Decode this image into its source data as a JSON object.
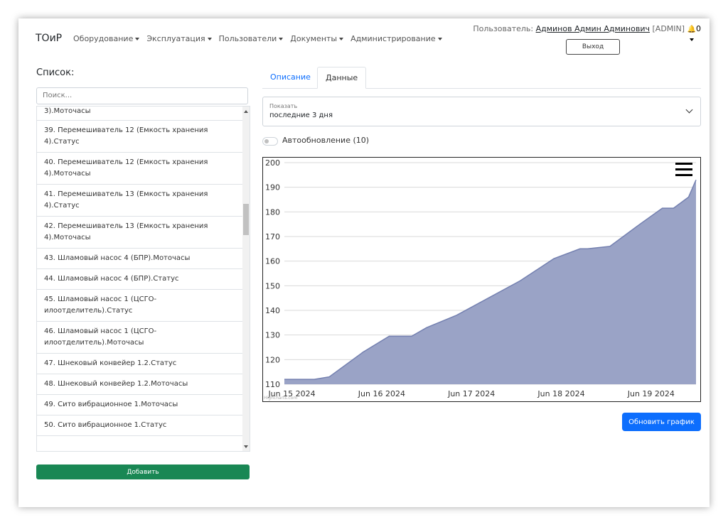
{
  "brand": "ТОиР",
  "nav": [
    "Оборудование",
    "Эксплуатация",
    "Пользователи",
    "Документы",
    "Администрирование"
  ],
  "user": {
    "prefix": "Пользователь:",
    "name": "Админов Админ Админович",
    "role": "[ADMIN]",
    "notifications": "0"
  },
  "logout_label": "Выход",
  "list": {
    "title": "Список:",
    "search_placeholder": "Поиск...",
    "items": [
      "3).Моточасы",
      "39. Перемешиватель 12 (Емкость хранения 4).Статус",
      "40. Перемешиватель 12 (Емкость хранения 4).Моточасы",
      "41. Перемешиватель 13 (Емкость хранения 4).Статус",
      "42. Перемешиватель 13 (Емкость хранения 4).Моточасы",
      "43. Шламовый насос 4 (БПР).Моточасы",
      "44. Шламовый насос 4 (БПР).Статус",
      "45. Шламовый насос 1 (ЦСГО-илоотделитель).Статус",
      "46. Шламовый насос 1 (ЦСГО-илоотделитель).Моточасы",
      "47. Шнековый конвейер 1.2.Статус",
      "48. Шнековый конвейер 1.2.Моточасы",
      "49. Сито вибрационное 1.Моточасы",
      "50. Сито вибрационное 1.Статус"
    ],
    "add_label": "Добавить"
  },
  "tabs": [
    "Описание",
    "Данные"
  ],
  "show": {
    "label": "Показать",
    "value": "последние 3 дня"
  },
  "autorefresh_label": "Автообновление (10)",
  "refresh_label": "Обновить график",
  "chart_credit": "Highcharts.com",
  "colors": {
    "area": "#9aa3c6",
    "line": "#7480b0",
    "primary": "#0d6efd",
    "success": "#198754"
  },
  "chart_data": {
    "type": "area",
    "title": "",
    "xlabel": "",
    "ylabel": "",
    "ylim": [
      110,
      200
    ],
    "yticks": [
      110,
      120,
      130,
      140,
      150,
      160,
      170,
      180,
      190,
      200
    ],
    "xlim": [
      "2024-06-14T22:00",
      "2024-06-19T12:00"
    ],
    "xticks": [
      {
        "t": "2024-06-15T00:00",
        "label": "Jun 15 2024"
      },
      {
        "t": "2024-06-16T00:00",
        "label": "Jun 16 2024"
      },
      {
        "t": "2024-06-17T00:00",
        "label": "Jun 17 2024"
      },
      {
        "t": "2024-06-18T00:00",
        "label": "Jun 18 2024"
      },
      {
        "t": "2024-06-19T00:00",
        "label": "Jun 19 2024"
      }
    ],
    "grid": true,
    "legend": "none",
    "points": [
      {
        "t": "2024-06-14T22:00",
        "y": 112
      },
      {
        "t": "2024-06-15T06:00",
        "y": 112
      },
      {
        "t": "2024-06-15T10:00",
        "y": 113
      },
      {
        "t": "2024-06-15T19:00",
        "y": 123
      },
      {
        "t": "2024-06-16T02:00",
        "y": 129.5
      },
      {
        "t": "2024-06-16T08:00",
        "y": 129.5
      },
      {
        "t": "2024-06-16T12:00",
        "y": 133
      },
      {
        "t": "2024-06-16T20:00",
        "y": 138
      },
      {
        "t": "2024-06-17T13:00",
        "y": 152
      },
      {
        "t": "2024-06-17T22:00",
        "y": 161
      },
      {
        "t": "2024-06-18T05:00",
        "y": 165
      },
      {
        "t": "2024-06-18T07:00",
        "y": 165
      },
      {
        "t": "2024-06-18T13:00",
        "y": 166
      },
      {
        "t": "2024-06-18T21:00",
        "y": 175
      },
      {
        "t": "2024-06-19T03:00",
        "y": 181.5
      },
      {
        "t": "2024-06-19T06:00",
        "y": 181.5
      },
      {
        "t": "2024-06-19T10:00",
        "y": 186
      },
      {
        "t": "2024-06-19T12:00",
        "y": 193
      },
      {
        "t": "2024-06-19T12:00",
        "y": 193
      }
    ]
  }
}
